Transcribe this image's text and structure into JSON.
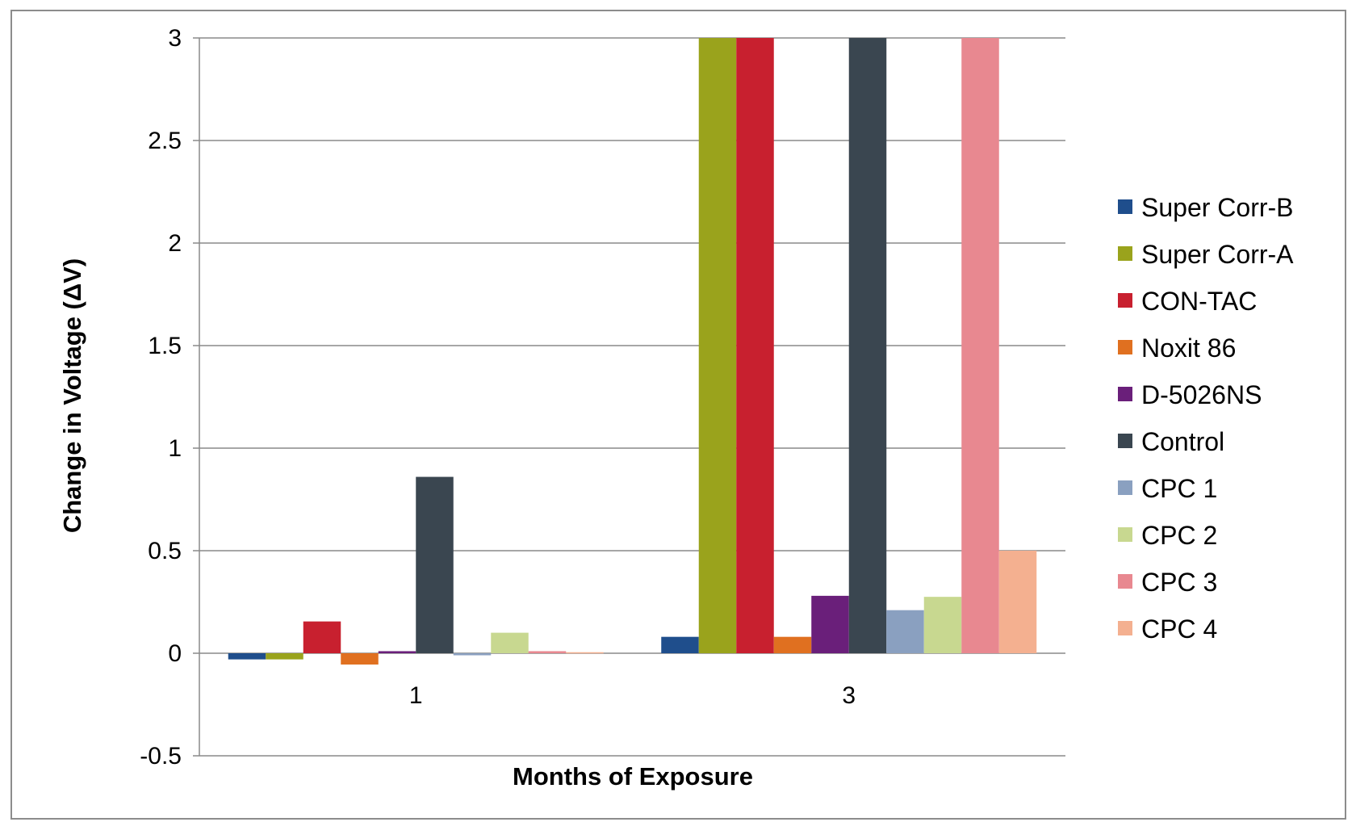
{
  "chart_data": {
    "type": "bar",
    "title": "",
    "xlabel": "Months of Exposure",
    "ylabel": "Change in Voltage (ΔV)",
    "categories": [
      "1",
      "3"
    ],
    "ylim": [
      -0.5,
      3
    ],
    "yticks": [
      3,
      2.5,
      2,
      1.5,
      1,
      0.5,
      0,
      -0.5
    ],
    "ytick_labels": [
      "3",
      "2.5",
      "2",
      "1.5",
      "1",
      "0.5",
      "0",
      "-0.5"
    ],
    "grid": true,
    "legend_position": "right",
    "series": [
      {
        "name": "Super Corr-B",
        "color": "#1f4e8c",
        "values": [
          -0.03,
          0.08
        ]
      },
      {
        "name": "Super Corr-A",
        "color": "#9aa31c",
        "values": [
          -0.03,
          3.0
        ]
      },
      {
        "name": "CON-TAC",
        "color": "#c8202f",
        "values": [
          0.155,
          3.0
        ]
      },
      {
        "name": "Noxit 86",
        "color": "#e07020",
        "values": [
          -0.055,
          0.08
        ]
      },
      {
        "name": "D-5026NS",
        "color": "#6a1f7a",
        "values": [
          0.01,
          0.28
        ]
      },
      {
        "name": "Control",
        "color": "#3a4650",
        "values": [
          0.86,
          3.0
        ]
      },
      {
        "name": "CPC 1",
        "color": "#8aa0c0",
        "values": [
          -0.01,
          0.21
        ]
      },
      {
        "name": "CPC 2",
        "color": "#c8d890",
        "values": [
          0.1,
          0.275
        ]
      },
      {
        "name": "CPC 3",
        "color": "#e88890",
        "values": [
          0.01,
          3.0
        ]
      },
      {
        "name": "CPC 4",
        "color": "#f4b090",
        "values": [
          0.005,
          0.5
        ]
      }
    ]
  }
}
